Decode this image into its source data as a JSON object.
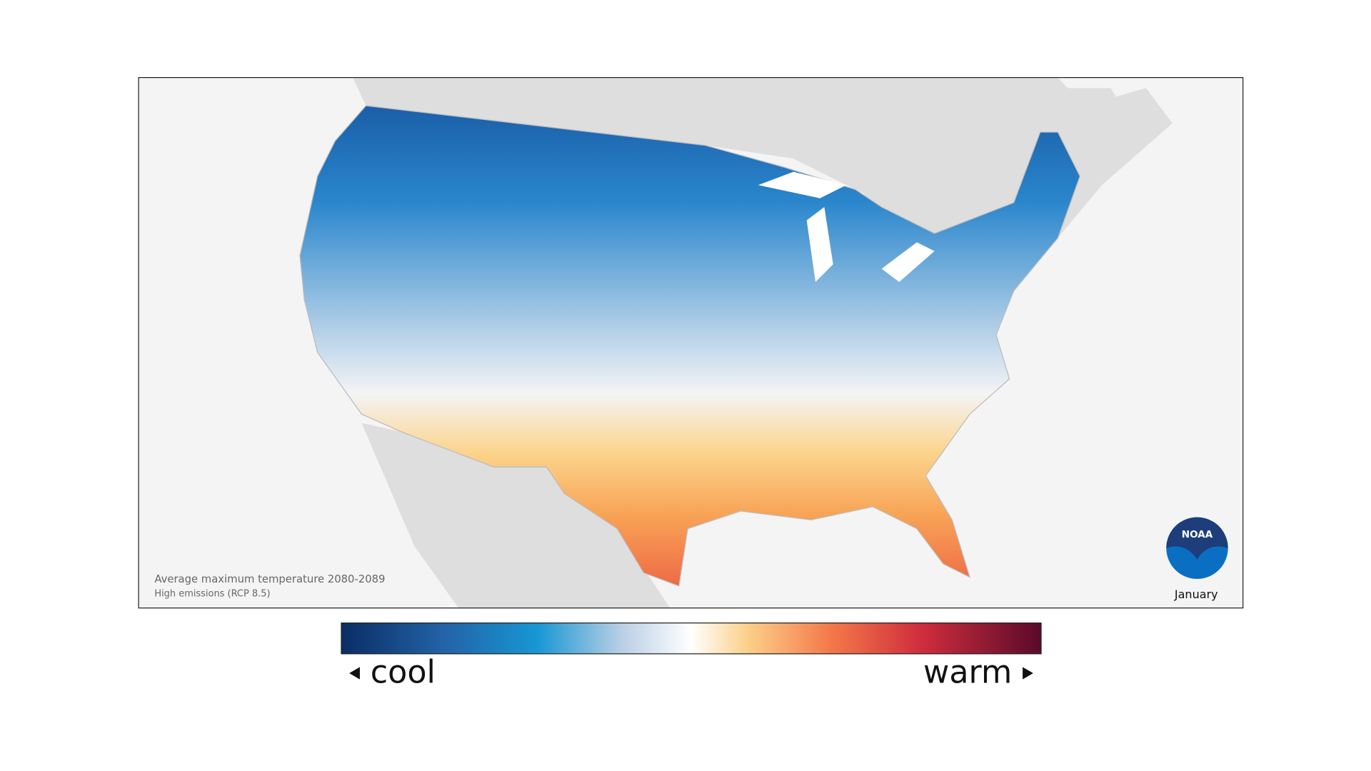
{
  "map": {
    "caption_line1": "Average maximum temperature 2080-2089",
    "caption_line2": "High emissions (RCP 8.5)",
    "month": "January",
    "logo": "NOAA"
  },
  "legend": {
    "low": "cool",
    "high": "warm"
  }
}
